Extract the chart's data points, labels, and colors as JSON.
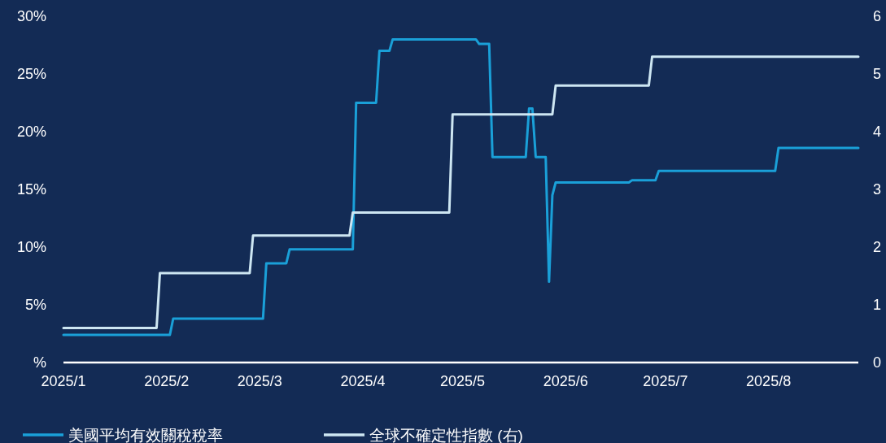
{
  "chart_data": {
    "type": "line",
    "xlim": [
      "2025-01-01",
      "2025-08-28"
    ],
    "xticks": [
      {
        "value": "2025-01-01",
        "label": "2025/1"
      },
      {
        "value": "2025-02-01",
        "label": "2025/2"
      },
      {
        "value": "2025-03-01",
        "label": "2025/3"
      },
      {
        "value": "2025-04-01",
        "label": "2025/4"
      },
      {
        "value": "2025-05-01",
        "label": "2025/5"
      },
      {
        "value": "2025-06-01",
        "label": "2025/6"
      },
      {
        "value": "2025-07-01",
        "label": "2025/7"
      },
      {
        "value": "2025-08-01",
        "label": "2025/8"
      }
    ],
    "ylim": [
      0,
      30
    ],
    "yticks": [
      {
        "value": 0,
        "label": "%"
      },
      {
        "value": 5,
        "label": "5%"
      },
      {
        "value": 10,
        "label": "10%"
      },
      {
        "value": 15,
        "label": "15%"
      },
      {
        "value": 20,
        "label": "20%"
      },
      {
        "value": 25,
        "label": "25%"
      },
      {
        "value": 30,
        "label": "30%"
      }
    ],
    "y2lim": [
      0,
      6
    ],
    "y2ticks": [
      0,
      1,
      2,
      3,
      4,
      5,
      6
    ],
    "grid": false,
    "legend": "bottom",
    "line_style": "solid",
    "marker": "none",
    "series": [
      {
        "name": "美國平均有效關稅稅率",
        "color": "#1aa0d8",
        "x": [
          "2025-01-01",
          "2025-02-02",
          "2025-02-03",
          "2025-03-02",
          "2025-03-03",
          "2025-03-09",
          "2025-03-10",
          "2025-03-29",
          "2025-03-30",
          "2025-04-05",
          "2025-04-06",
          "2025-04-09",
          "2025-04-10",
          "2025-05-05",
          "2025-05-06",
          "2025-05-09",
          "2025-05-10",
          "2025-05-20",
          "2025-05-21",
          "2025-05-22",
          "2025-05-23",
          "2025-05-26",
          "2025-05-27",
          "2025-05-28",
          "2025-05-29",
          "2025-06-20",
          "2025-06-21",
          "2025-06-28",
          "2025-06-29",
          "2025-08-03",
          "2025-08-04",
          "2025-08-28"
        ],
        "values": [
          2.4,
          2.4,
          3.8,
          3.8,
          8.6,
          8.6,
          9.8,
          9.8,
          22.5,
          22.5,
          27,
          27,
          28,
          28,
          27.6,
          27.6,
          17.8,
          17.8,
          22,
          22,
          17.8,
          17.8,
          7,
          14.5,
          15.6,
          15.6,
          15.8,
          15.8,
          16.6,
          16.6,
          18.6,
          18.6
        ]
      },
      {
        "name": "全球不確定性指數 (右)",
        "color": "#cde6f2",
        "axis": "y2",
        "x": [
          "2025-01-01",
          "2025-01-29",
          "2025-01-30",
          "2025-02-26",
          "2025-02-27",
          "2025-03-28",
          "2025-03-29",
          "2025-04-27",
          "2025-04-28",
          "2025-05-28",
          "2025-05-29",
          "2025-06-26",
          "2025-06-27",
          "2025-08-28"
        ],
        "values": [
          0.6,
          0.6,
          1.55,
          1.55,
          2.2,
          2.2,
          2.6,
          2.6,
          4.3,
          4.3,
          4.8,
          4.8,
          5.3,
          5.3
        ]
      }
    ]
  }
}
